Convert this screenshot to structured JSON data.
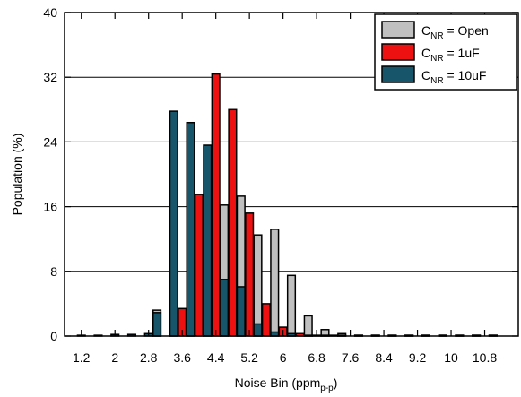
{
  "chart_data": {
    "type": "bar",
    "title": "",
    "xlabel": {
      "main": "Noise Bin (ppm",
      "sub": "p-p",
      "close": ")"
    },
    "ylabel": "Population (%)",
    "xlim": [
      0.8,
      11.6
    ],
    "ylim": [
      0,
      40
    ],
    "xticks": [
      "1.2",
      "2",
      "2.8",
      "3.6",
      "4.4",
      "5.2",
      "6",
      "6.8",
      "7.6",
      "8.4",
      "9.2",
      "10",
      "10.8"
    ],
    "yticks": [
      "0",
      "8",
      "16",
      "24",
      "32",
      "40"
    ],
    "grid": "horizontal",
    "legend_position": "top-right",
    "bin_width": 0.2,
    "x": [
      1.2,
      1.4,
      1.6,
      1.8,
      2.0,
      2.2,
      2.4,
      2.6,
      2.8,
      3.0,
      3.2,
      3.4,
      3.6,
      3.8,
      4.0,
      4.2,
      4.4,
      4.6,
      4.8,
      5.0,
      5.2,
      5.4,
      5.6,
      5.8,
      6.0,
      6.2,
      6.4,
      6.6,
      6.8,
      7.0,
      7.2,
      7.4,
      7.6,
      7.8,
      8.0,
      8.2,
      8.4,
      8.6,
      8.8,
      9.0,
      9.2,
      9.4,
      9.6,
      9.8,
      10.0,
      10.2,
      10.4,
      10.6,
      10.8,
      11.0,
      11.2
    ],
    "series": [
      {
        "name": {
          "pre": "C",
          "sub": "NR",
          "post": " = Open"
        },
        "color": "#c0c0c0",
        "values": [
          0,
          0,
          0,
          0,
          0,
          0,
          0,
          0,
          0,
          3.2,
          0,
          8.1,
          0,
          8.3,
          0,
          11.0,
          0,
          16.2,
          0,
          17.3,
          0,
          12.5,
          0,
          13.2,
          0,
          7.5,
          0,
          2.5,
          0,
          0.8,
          0,
          0.3,
          0,
          0.1,
          0,
          0.1,
          0,
          0.1,
          0,
          0.1,
          0,
          0.1,
          0,
          0.1,
          0,
          0.1,
          0,
          0.1,
          0,
          0.1,
          0
        ]
      },
      {
        "name": {
          "pre": "C",
          "sub": "NR",
          "post": " = 1uF"
        },
        "color": "#ee1111",
        "values": [
          0,
          0,
          0,
          0,
          0,
          0,
          0,
          0,
          0,
          0,
          0,
          0,
          3.4,
          0,
          17.5,
          0,
          32.4,
          0,
          28.0,
          0,
          15.2,
          0,
          4.0,
          0,
          1.1,
          0,
          0.3,
          0,
          0.1,
          0,
          0.1,
          0,
          0,
          0,
          0,
          0,
          0,
          0,
          0,
          0,
          0,
          0,
          0,
          0,
          0,
          0,
          0,
          0,
          0,
          0,
          0
        ]
      },
      {
        "name": {
          "pre": "C",
          "sub": "NR",
          "post": " = 10uF"
        },
        "color": "#17566a",
        "values": [
          0.1,
          0,
          0.1,
          0,
          0.2,
          0,
          0.2,
          0,
          0.3,
          2.9,
          0,
          27.8,
          0,
          26.4,
          0,
          23.6,
          0,
          7.0,
          0,
          6.1,
          0,
          1.5,
          0,
          0.5,
          0,
          0.3,
          0,
          0.1,
          0,
          0.1,
          0,
          0.1,
          0,
          0.1,
          0,
          0.1,
          0,
          0.1,
          0,
          0.1,
          0,
          0.1,
          0,
          0.1,
          0,
          0.1,
          0,
          0.1,
          0,
          0.1,
          0
        ]
      }
    ]
  }
}
